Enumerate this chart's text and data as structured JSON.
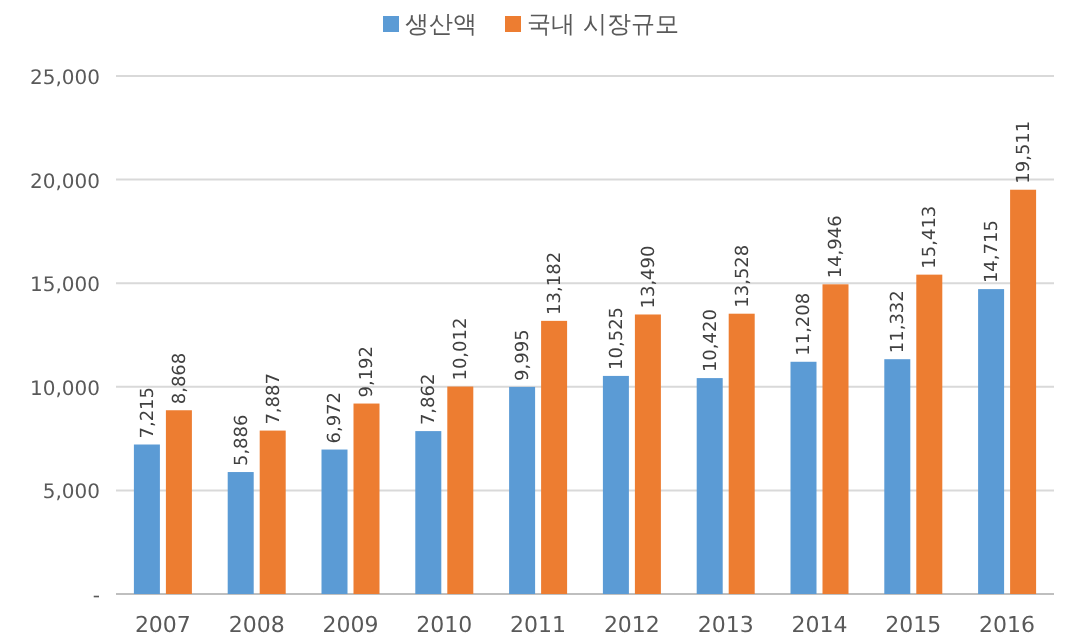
{
  "chart_data": {
    "type": "bar",
    "categories": [
      "2007",
      "2008",
      "2009",
      "2010",
      "2011",
      "2012",
      "2013",
      "2014",
      "2015",
      "2016"
    ],
    "series": [
      {
        "name": "생산액",
        "color": "#5b9bd5",
        "values": [
          7215,
          5886,
          6972,
          7862,
          9995,
          10525,
          10420,
          11208,
          11332,
          14715
        ],
        "value_labels": [
          "7,215",
          "5,886",
          "6,972",
          "7,862",
          "9,995",
          "10,525",
          "10,420",
          "11,208",
          "11,332",
          "14,715"
        ]
      },
      {
        "name": "국내 시장규모",
        "color": "#ed7d31",
        "values": [
          8868,
          7887,
          9192,
          10012,
          13182,
          13490,
          13528,
          14946,
          15413,
          19511
        ],
        "value_labels": [
          "8,868",
          "7,887",
          "9,192",
          "10,012",
          "13,182",
          "13,490",
          "13,528",
          "14,946",
          "15,413",
          "19,511"
        ]
      }
    ],
    "ylim": [
      0,
      25000
    ],
    "yticks": [
      {
        "value": 0,
        "label": "-"
      },
      {
        "value": 5000,
        "label": "5,000"
      },
      {
        "value": 10000,
        "label": "10,000"
      },
      {
        "value": 15000,
        "label": "15,000"
      },
      {
        "value": 20000,
        "label": "20,000"
      },
      {
        "value": 25000,
        "label": "25,000"
      }
    ],
    "grid": "y",
    "legend": "top"
  }
}
